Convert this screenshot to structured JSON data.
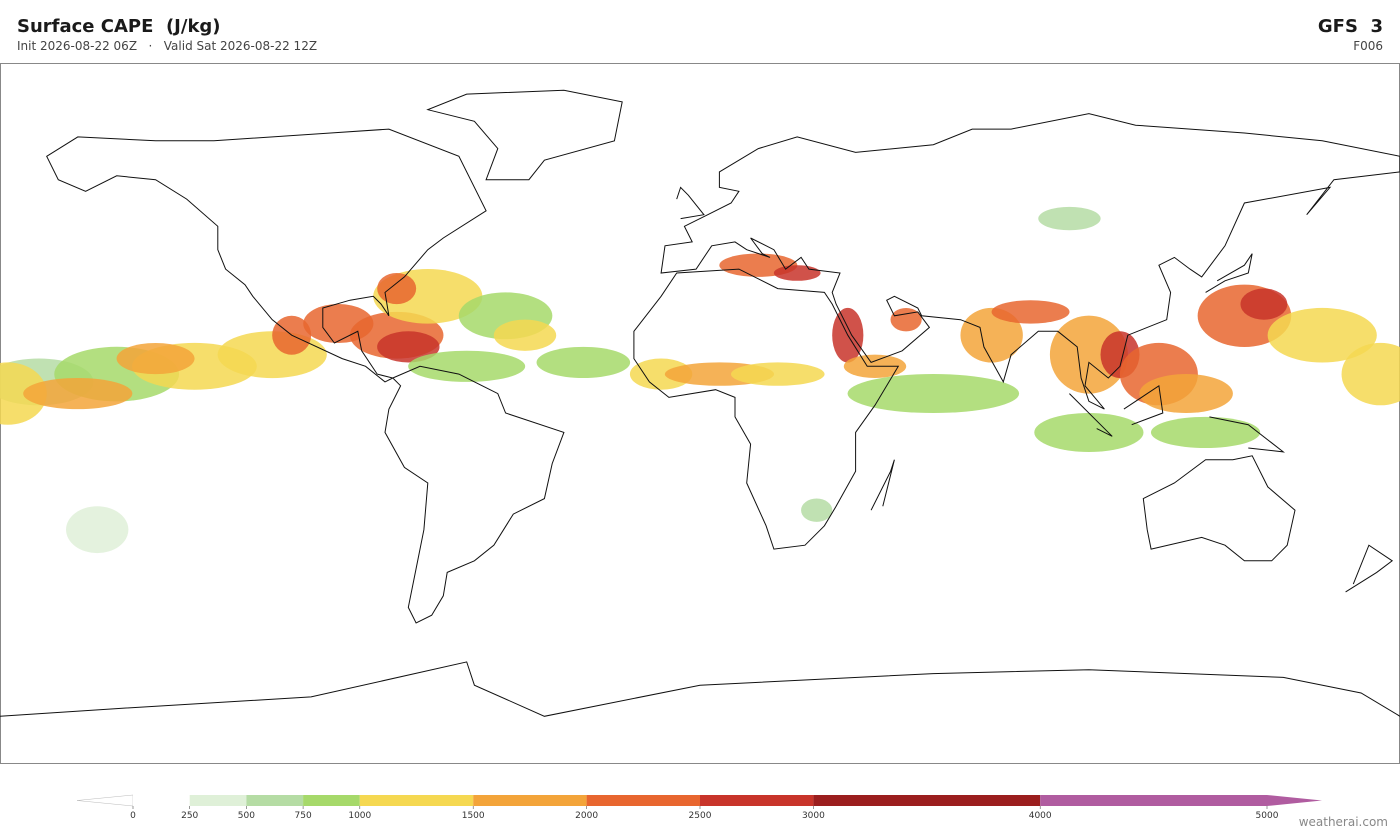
{
  "header": {
    "title": "Surface CAPE  (J/kg)",
    "init": "Init 2026-08-22 06Z",
    "separator": "·",
    "valid": "Valid Sat 2026-08-22 12Z",
    "model": "GFS  3",
    "forecast_hour": "F006"
  },
  "colorbar": {
    "levels": [
      0,
      250,
      500,
      750,
      1000,
      1500,
      2000,
      2500,
      3000,
      4000,
      5000
    ],
    "colors": [
      "#ffffff",
      "#dff0d8",
      "#b5dca4",
      "#a6d96a",
      "#f5d851",
      "#f3a43a",
      "#e8662f",
      "#c8342a",
      "#9b1e1e",
      "#b05ca0"
    ],
    "extend": "both"
  },
  "footer": {
    "watermark": "weatherai.com"
  }
}
